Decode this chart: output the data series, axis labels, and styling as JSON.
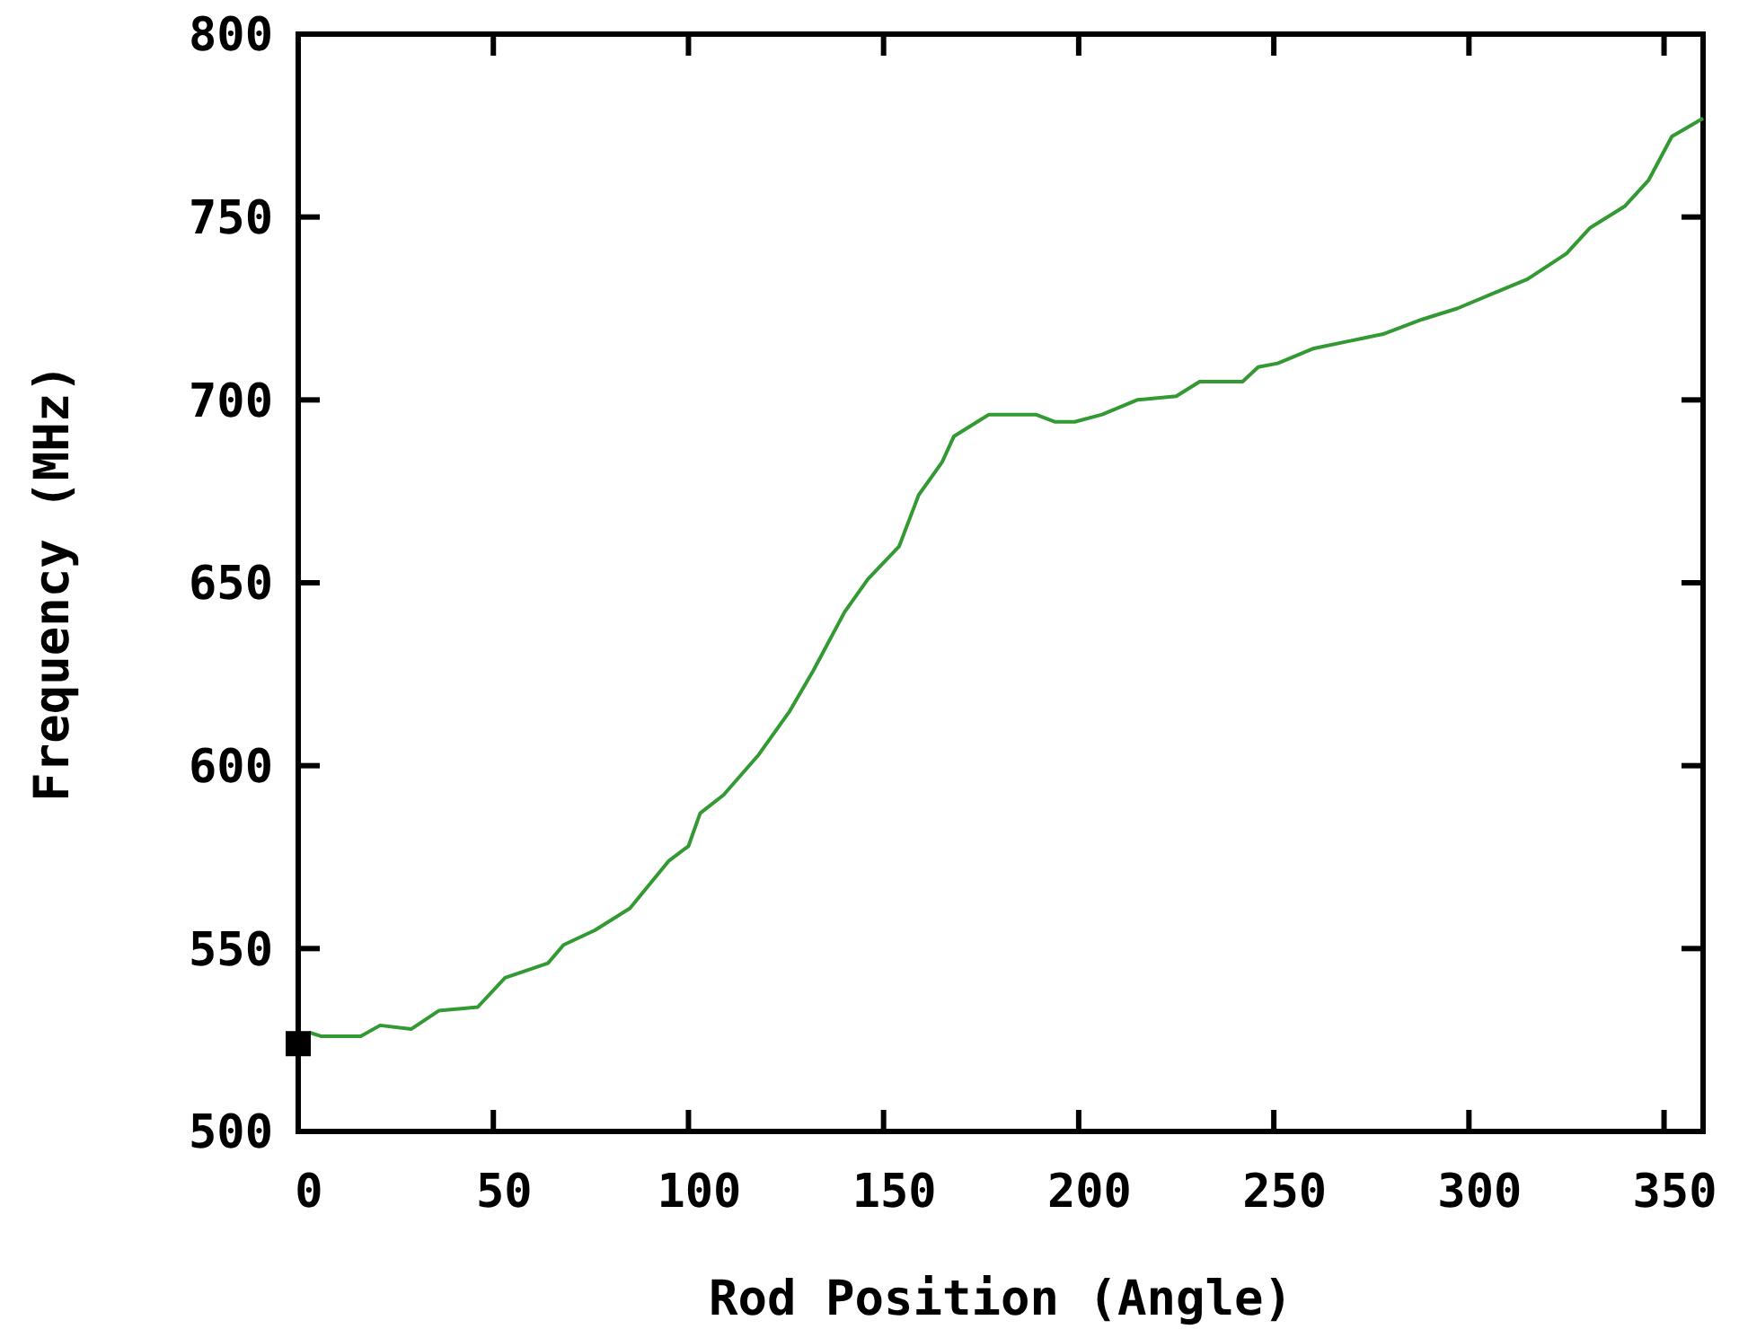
{
  "chart_data": {
    "type": "line",
    "xlabel": "Rod Position (Angle)",
    "ylabel": "Frequency (MHz)",
    "xlim": [
      0,
      360
    ],
    "xticks": [
      0,
      50,
      100,
      150,
      200,
      250,
      300,
      350
    ],
    "ylim": [
      500,
      800
    ],
    "yticks": [
      500,
      550,
      600,
      650,
      700,
      750,
      800
    ],
    "grid": false,
    "series": [
      {
        "color": "#339933",
        "marker": "none",
        "x": [
          3,
          6,
          16,
          21,
          29,
          36,
          46,
          53,
          64,
          68,
          76,
          85,
          95,
          100,
          103,
          109,
          118,
          126,
          132,
          140,
          146,
          154,
          159,
          165,
          168,
          174,
          177,
          189,
          194,
          199,
          206,
          215,
          225,
          231,
          242,
          246,
          251,
          260,
          269,
          278,
          288,
          297,
          306,
          315,
          325,
          331,
          340,
          346,
          352,
          360
        ],
        "values": [
          527,
          526,
          526,
          529,
          528,
          533,
          534,
          542,
          546,
          551,
          555,
          561,
          574,
          578,
          587,
          592,
          603,
          615,
          626,
          642,
          651,
          660,
          674,
          683,
          690,
          694,
          696,
          696,
          694,
          694,
          696,
          700,
          701,
          705,
          705,
          709,
          710,
          714,
          716,
          718,
          722,
          725,
          729,
          733,
          740,
          747,
          753,
          760,
          772,
          777
        ]
      },
      {
        "type": "scatter",
        "color": "#000000",
        "marker": "square",
        "x": [
          0
        ],
        "values": [
          524
        ]
      }
    ]
  }
}
